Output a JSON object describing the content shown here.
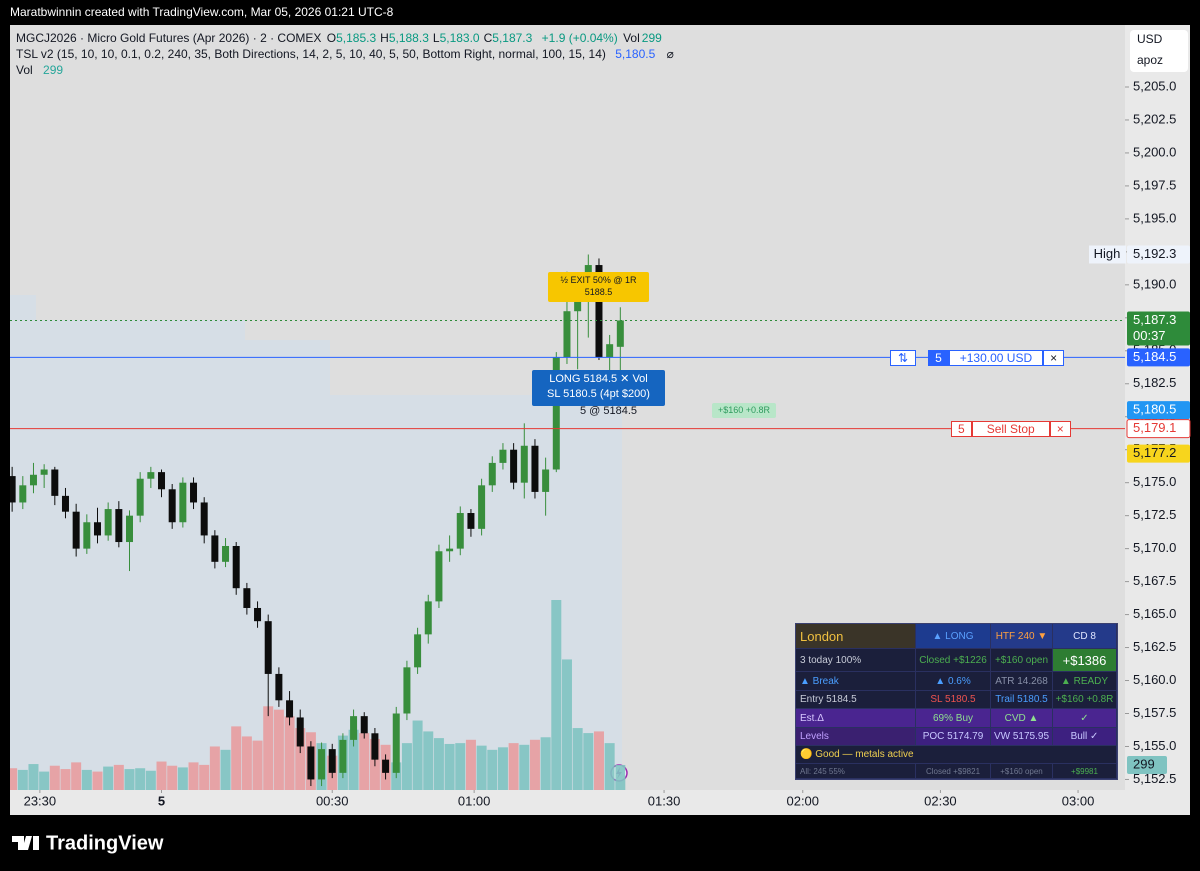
{
  "header": {
    "credit": "Maratbwinnin created with TradingView.com, Mar 05, 2026 01:21 UTC-8"
  },
  "legend": {
    "symbol": "MGCJ2026 · Micro Gold Futures (Apr 2026) · 2 · COMEX",
    "ohlc": [
      {
        "key": "O",
        "value": "5,185.3"
      },
      {
        "key": "H",
        "value": "5,188.3"
      },
      {
        "key": "L",
        "value": "5,183.0"
      },
      {
        "key": "C",
        "value": "5,187.3"
      }
    ],
    "change": "+1.9 (+0.04%)",
    "vol_key": "Vol",
    "tsl": "TSL v2 (15, 10, 10, 0.1, 0.2, 240, 35, Both Directions, 14, 2, 5, 10, 40, 5, 50, Bottom Right, normal, 100, 15, 14)",
    "tsl_value": "5,180.5",
    "tsl_icon": "⌀",
    "vol_label": "Vol"
  },
  "chart_data": {
    "type": "candlestick",
    "open": [
      5175.5,
      5173.5,
      5174.8,
      5175.6,
      5176.0,
      5174.0,
      5172.8,
      5170.0,
      5172.0,
      5171.0,
      5173.0,
      5170.5,
      5172.5,
      5175.3,
      5175.8,
      5174.5,
      5172.0,
      5175.0,
      5173.5,
      5171.0,
      5169.0,
      5170.2,
      5167.0,
      5165.5,
      5164.5,
      5160.5,
      5158.5,
      5157.2,
      5155.0,
      5152.5,
      5154.8,
      5153.0,
      5155.5,
      5157.3,
      5156.0,
      5154.0,
      5153.0,
      5157.5,
      5161.0,
      5163.5,
      5166.0,
      5169.8,
      5170.0,
      5172.7,
      5171.5,
      5174.8,
      5176.5,
      5177.5,
      5175.0,
      5177.8,
      5174.3,
      5176.0,
      5184.5,
      5188.0,
      5189.0,
      5191.5,
      5184.5,
      5185.3
    ],
    "high": [
      5176.2,
      5175.5,
      5176.5,
      5176.4,
      5176.2,
      5174.6,
      5173.4,
      5172.6,
      5173.1,
      5173.5,
      5173.6,
      5172.9,
      5175.8,
      5176.2,
      5176.0,
      5174.9,
      5175.4,
      5175.4,
      5173.9,
      5171.4,
      5170.8,
      5170.5,
      5167.4,
      5166.0,
      5165.0,
      5161.0,
      5159.2,
      5157.8,
      5155.4,
      5155.3,
      5155.2,
      5156.0,
      5157.8,
      5157.6,
      5156.4,
      5154.4,
      5158.0,
      5161.5,
      5164.0,
      5166.5,
      5170.3,
      5171.0,
      5173.2,
      5173.0,
      5175.3,
      5177.0,
      5178.0,
      5178.0,
      5179.5,
      5178.3,
      5176.9,
      5184.9,
      5191.0,
      5190.4,
      5192.3,
      5192.0,
      5186.2,
      5188.3
    ],
    "low": [
      5172.8,
      5173.0,
      5174.2,
      5174.6,
      5173.3,
      5172.3,
      5169.4,
      5169.6,
      5170.4,
      5170.6,
      5170.1,
      5168.3,
      5172.0,
      5174.6,
      5173.9,
      5171.5,
      5171.6,
      5173.0,
      5170.4,
      5168.5,
      5168.6,
      5166.5,
      5165.0,
      5164.0,
      5157.3,
      5158.0,
      5156.6,
      5154.5,
      5152.0,
      5152.0,
      5152.6,
      5152.6,
      5155.0,
      5155.6,
      5153.5,
      5152.5,
      5152.6,
      5157.0,
      5160.5,
      5162.8,
      5165.5,
      5169.0,
      5169.5,
      5170.9,
      5171.0,
      5174.3,
      5176.0,
      5174.5,
      5173.8,
      5173.8,
      5172.5,
      5175.8,
      5184.0,
      5183.6,
      5186.0,
      5184.3,
      5183.0,
      5183.0
    ],
    "close": [
      5173.5,
      5174.8,
      5175.6,
      5176.0,
      5174.0,
      5172.8,
      5170.0,
      5172.0,
      5171.0,
      5173.0,
      5170.5,
      5172.5,
      5175.3,
      5175.8,
      5174.5,
      5172.0,
      5175.0,
      5173.5,
      5171.0,
      5169.0,
      5170.2,
      5167.0,
      5165.5,
      5164.5,
      5160.5,
      5158.5,
      5157.2,
      5155.0,
      5152.5,
      5154.8,
      5153.0,
      5155.5,
      5157.3,
      5156.0,
      5154.0,
      5153.0,
      5157.5,
      5161.0,
      5163.5,
      5166.0,
      5169.8,
      5170.0,
      5172.7,
      5171.5,
      5174.8,
      5176.5,
      5177.5,
      5175.0,
      5177.8,
      5174.3,
      5176.0,
      5184.5,
      5188.0,
      5189.0,
      5191.5,
      5184.5,
      5185.5,
      5187.3
    ],
    "volume": [
      260,
      240,
      310,
      220,
      290,
      250,
      330,
      240,
      220,
      280,
      300,
      250,
      260,
      230,
      340,
      290,
      270,
      330,
      300,
      520,
      480,
      760,
      640,
      590,
      1000,
      960,
      880,
      740,
      690,
      560,
      410,
      650,
      720,
      680,
      610,
      540,
      330,
      560,
      830,
      700,
      620,
      550,
      560,
      600,
      530,
      480,
      510,
      560,
      540,
      600,
      630,
      2270,
      1560,
      740,
      680,
      700,
      560,
      299
    ],
    "up_color": "#388e3c",
    "down_color": "#0d0d0d",
    "volume_up_color": "#7fc3c1",
    "volume_down_color": "#e89c9f",
    "xlim": [
      -0.2,
      104.3
    ],
    "xticks": [
      {
        "value": 2.6,
        "label": "23:30"
      },
      {
        "value": 14.0,
        "label": "5"
      },
      {
        "value": 30.0,
        "label": "00:30"
      },
      {
        "value": 43.3,
        "label": "01:00"
      },
      {
        "value": 61.1,
        "label": "01:30"
      },
      {
        "value": 74.1,
        "label": "02:00"
      },
      {
        "value": 87.0,
        "label": "02:30"
      },
      {
        "value": 99.9,
        "label": "03:00"
      }
    ],
    "ylim": [
      5151.7,
      5209.7
    ],
    "yticks": [
      {
        "value": 5152.5,
        "label": "5,152.5"
      },
      {
        "value": 5155.0,
        "label": "5,155.0"
      },
      {
        "value": 5157.5,
        "label": "5,157.5"
      },
      {
        "value": 5160.0,
        "label": "5,160.0"
      },
      {
        "value": 5162.5,
        "label": "5,162.5"
      },
      {
        "value": 5165.0,
        "label": "5,165.0"
      },
      {
        "value": 5167.5,
        "label": "5,167.5"
      },
      {
        "value": 5170.0,
        "label": "5,170.0"
      },
      {
        "value": 5172.5,
        "label": "5,172.5"
      },
      {
        "value": 5175.0,
        "label": "5,175.0"
      },
      {
        "value": 5177.5,
        "label": "5,177.5"
      },
      {
        "value": 5180.0,
        "label": "5,180.0"
      },
      {
        "value": 5182.5,
        "label": "5,182.5"
      },
      {
        "value": 5185.0,
        "label": "5,185.0"
      },
      {
        "value": 5187.5,
        "label": "5,187.5"
      },
      {
        "value": 5190.0,
        "label": "5,190.0"
      },
      {
        "value": 5192.5,
        "label": "5,192.5"
      },
      {
        "value": 5195.0,
        "label": "5,195.0"
      },
      {
        "value": 5197.5,
        "label": "5,197.5"
      },
      {
        "value": 5200.0,
        "label": "5,200.0"
      },
      {
        "value": 5202.5,
        "label": "5,202.5"
      },
      {
        "value": 5205.0,
        "label": "5,205.0"
      }
    ],
    "volume_lim": [
      0,
      9140
    ],
    "volume_badge_color": "#7fc3c1",
    "grid": false
  },
  "price_scale": {
    "currency": "USD",
    "account": "apoz"
  },
  "price_badges": [
    {
      "value": 5192.3,
      "label": "5,192.3",
      "tag": "High",
      "bg": "#eef3fb",
      "color": "#131722"
    },
    {
      "value": 5187.3,
      "label": "5,187.3",
      "sub": "00:37",
      "bg": "#2e8b3a",
      "color": "#ffffff",
      "line": "dotted"
    },
    {
      "value": 5184.5,
      "label": "5,184.5",
      "bg": "#2962ff",
      "color": "#ffffff",
      "line": "solid"
    },
    {
      "value": 5180.5,
      "label": "5,180.5",
      "bg": "#2196f3",
      "color": "#ffffff"
    },
    {
      "value": 5179.1,
      "label": "5,179.1",
      "bg": "#ffffff",
      "color": "#e53935",
      "border": "#e53935",
      "line": "solid"
    },
    {
      "value": 5177.2,
      "label": "5,177.2",
      "bg": "#f7d51d",
      "color": "#131722"
    }
  ],
  "orders": {
    "position": {
      "icon": "⇅",
      "qty": "5",
      "pnl": "+130.00 USD",
      "close": "×"
    },
    "sell_stop": {
      "qty": "5",
      "label": "Sell Stop",
      "close": "×"
    },
    "exit_tip": {
      "text": "½ EXIT 50% @ 1R",
      "price": "5188.5"
    },
    "long_tip": {
      "line1": "LONG  5184.5  ✕ Vol",
      "line2": "SL 5180.5  (4pt  $200)"
    },
    "fill": "5 @ 5184.5",
    "pnl_tag": "+$160  +0.8R"
  },
  "table": {
    "rows": [
      [
        "London",
        "▲ LONG",
        "HTF 240 ▼",
        "CD 8"
      ],
      [
        "3 today  100%",
        "Closed +$1226",
        "+$160 open",
        "+$1386"
      ],
      [
        "▲ Break",
        "▲ 0.6%",
        "ATR 14.268",
        "▲ READY"
      ],
      [
        "Entry 5184.5",
        "SL 5180.5",
        "Trail 5180.5",
        "+$160 +0.8R"
      ],
      [
        "Est.Δ",
        "69% Buy",
        "CVD ▲",
        "✓"
      ],
      [
        "Levels",
        "POC 5174.79",
        "VW 5175.95",
        "Bull ✓"
      ],
      [
        "🟡  Good — metals active"
      ],
      [
        "All: 245  55%",
        "Closed +$9821",
        "+$160 open",
        "+$9981"
      ]
    ]
  },
  "footer": {
    "brand": "TradingView"
  }
}
